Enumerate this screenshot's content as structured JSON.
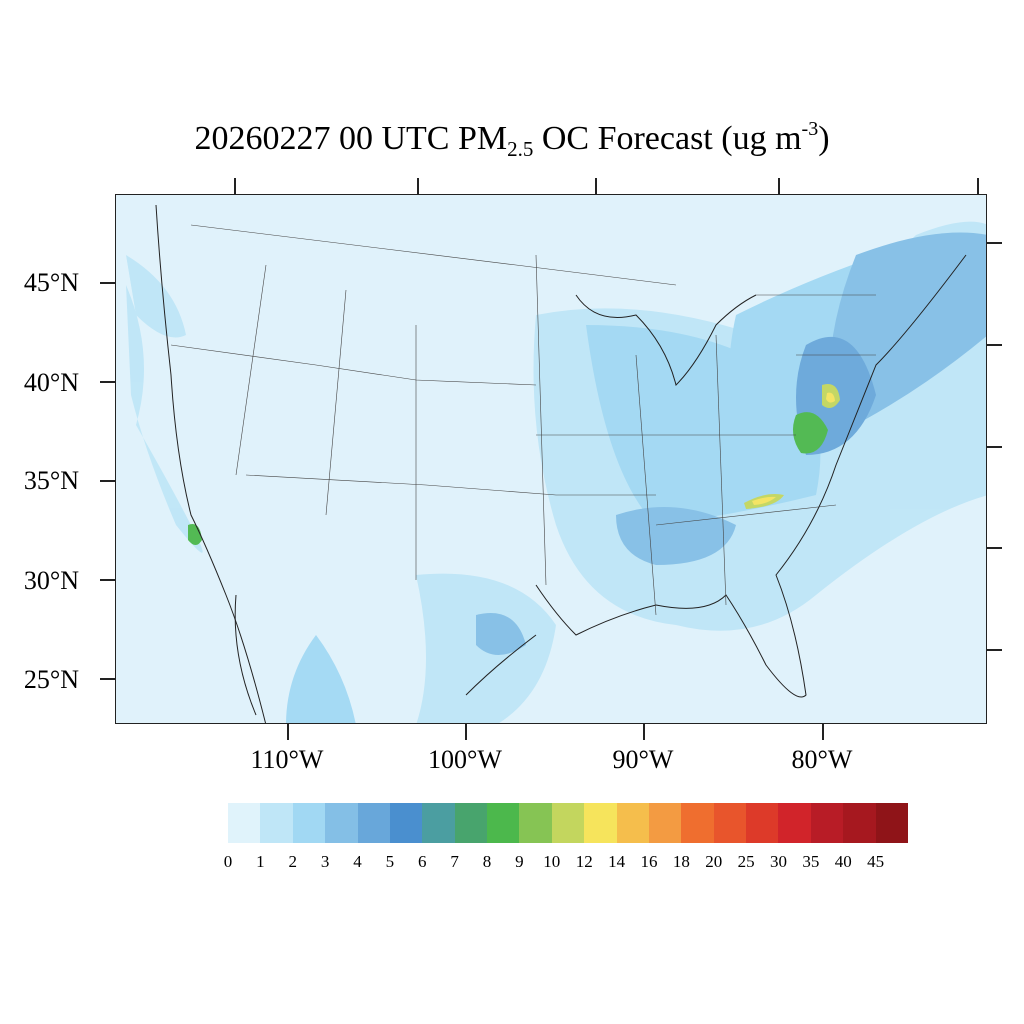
{
  "title": {
    "main": "20260227 00 UTC PM",
    "sub": "2.5",
    "mid": " OC Forecast (ug m",
    "sup": "-3",
    "end": ")"
  },
  "axes": {
    "lat_labels": [
      "45°N",
      "40°N",
      "35°N",
      "30°N",
      "25°N"
    ],
    "lon_labels": [
      "110°W",
      "100°W",
      "90°W",
      "80°W"
    ]
  },
  "colorbar": {
    "labels": [
      "0",
      "1",
      "2",
      "3",
      "4",
      "5",
      "6",
      "7",
      "8",
      "9",
      "10",
      "12",
      "14",
      "16",
      "18",
      "20",
      "25",
      "30",
      "35",
      "40",
      "45"
    ],
    "colors": [
      "#e0f3fb",
      "#bfe6f7",
      "#a1d8f3",
      "#84bfe6",
      "#68a7da",
      "#4a8fcf",
      "#4b9ea1",
      "#48a46d",
      "#4cb84c",
      "#86c454",
      "#c3d65e",
      "#f6e45c",
      "#f5be4c",
      "#f39b42",
      "#ef6e2f",
      "#e8552c",
      "#dd3a29",
      "#d1242a",
      "#b81c26",
      "#a6181f",
      "#8f1418"
    ]
  },
  "map": {
    "background": "#e0f2fb",
    "hotspots": "light-blue to dark-blue OC concentrations, green/yellow maxima over Mid-Atlantic, Carolinas and southern California"
  }
}
